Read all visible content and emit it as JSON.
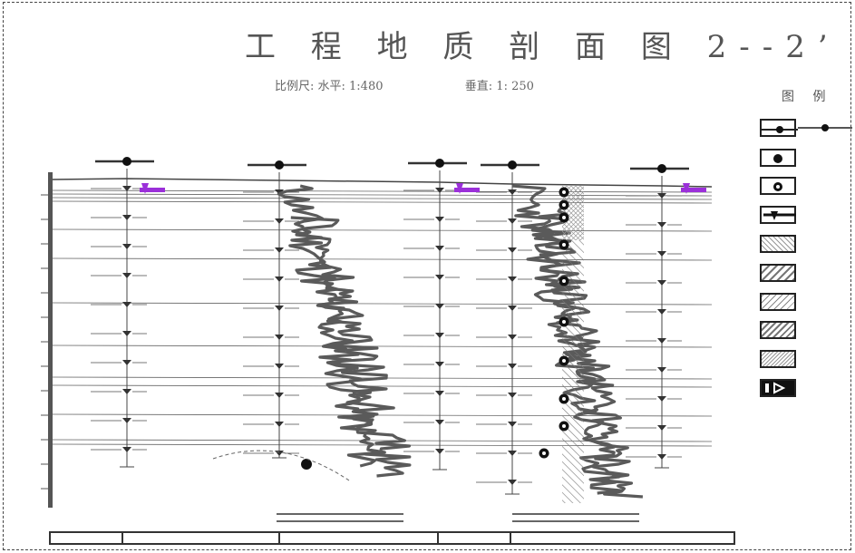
{
  "title": "工 程 地 质 剖 面 图 2--2’",
  "scale": {
    "label": "比例尺: 水平: 1:480",
    "vertical": "垂直: 1: 250"
  },
  "legend": {
    "title": "图 例"
  },
  "colors": {
    "cpt_curve": "#555555",
    "water_table": "#9b30d9",
    "line": "#333333"
  },
  "icons": [
    "borehole-icon",
    "sample-icon",
    "water-level-icon",
    "hatch-pattern-icon",
    "arrow-box-icon"
  ]
}
